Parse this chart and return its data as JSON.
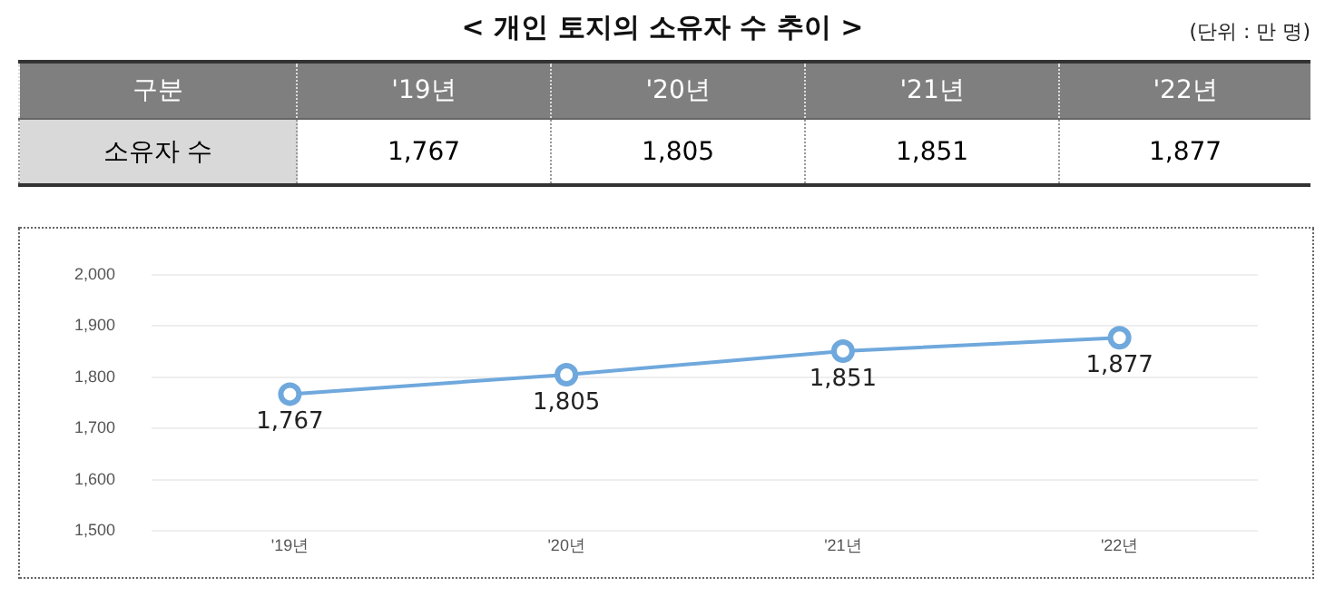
{
  "chart_data": {
    "type": "line",
    "title": "< 개인 토지의 소유자 수 추이 >",
    "annotations": [
      "(단위 : 만 명)",
      "구분",
      "소유자 수"
    ],
    "categories": [
      "'19년",
      "'20년",
      "'21년",
      "'22년"
    ],
    "series": [
      {
        "color": "#6fa8dc",
        "values": [
          1767,
          1805,
          1851,
          1877
        ],
        "value_labels": [
          "1,767",
          "1,805",
          "1,851",
          "1,877"
        ]
      }
    ],
    "ylim": [
      1500,
      2000
    ],
    "yticks": [
      {
        "value": 1500,
        "label": "1,500"
      },
      {
        "value": 1600,
        "label": "1,600"
      },
      {
        "value": 1700,
        "label": "1,700"
      },
      {
        "value": 1800,
        "label": "1,800"
      },
      {
        "value": 1900,
        "label": "1,900"
      },
      {
        "value": 2000,
        "label": "2,000"
      }
    ],
    "grid": "y",
    "marker": "circle",
    "line_style": "solid",
    "legend": false
  }
}
